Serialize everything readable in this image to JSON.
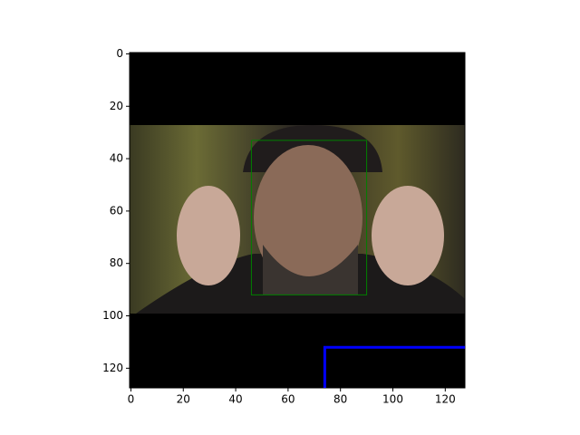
{
  "chart_data": {
    "type": "image",
    "xlim": [
      -0.5,
      127.5
    ],
    "ylim": [
      127.5,
      -0.5
    ],
    "xticks": [
      0,
      20,
      40,
      60,
      80,
      100,
      120
    ],
    "yticks": [
      0,
      20,
      40,
      60,
      80,
      100,
      120
    ],
    "series": [
      {
        "color": "green",
        "x": [
          46,
          90,
          90,
          46,
          46
        ],
        "values": [
          33,
          33,
          92,
          92,
          33
        ]
      },
      {
        "color": "blue",
        "x": [
          74,
          74,
          127.5
        ],
        "values": [
          127.5,
          112,
          112
        ]
      }
    ]
  }
}
